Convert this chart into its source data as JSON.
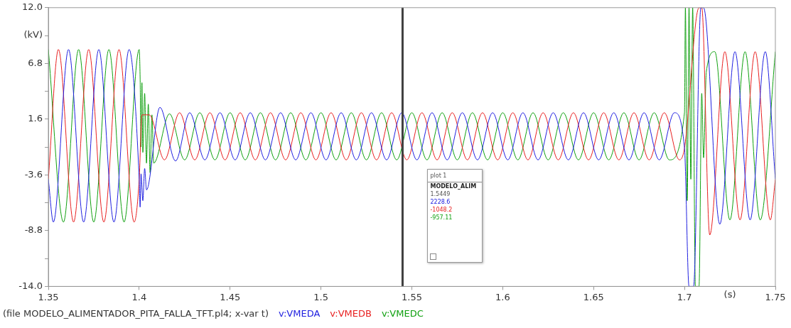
{
  "chart_data": {
    "type": "line",
    "ylabel": "(kV)",
    "xlabel": "(s)",
    "xlim": [
      1.35,
      1.75
    ],
    "xticks": [
      1.35,
      1.4,
      1.45,
      1.5,
      1.55,
      1.6,
      1.65,
      1.7,
      1.75
    ],
    "ylim": [
      -14,
      12
    ],
    "yticks": [
      {
        "value": 12,
        "label": "12.0"
      },
      {
        "value": 9.4,
        "label": null
      },
      6.8,
      {
        "value": 4.2,
        "label": null
      },
      1.6,
      {
        "value": -1,
        "label": null
      },
      -3.6,
      {
        "value": -6.2,
        "label": null
      },
      -8.8,
      {
        "value": -11.4,
        "label": null
      },
      {
        "value": -14,
        "label": "-14.0"
      }
    ],
    "marker": "none",
    "line_style": "solid",
    "legend": "bottom",
    "ref_lines": [
      {
        "axis": "x",
        "value": 1.5449,
        "color": "#404040"
      }
    ],
    "annotations": [
      "(file MODELO_ALIMENTADOR_PITA_FALLA_TFT.pl4; x-var t)",
      "plot 1",
      "MODELO_ALIM",
      "1.5449",
      "2228.6",
      "-1048.2",
      "-957.11"
    ],
    "series": [
      {
        "name": "v:VMEDA",
        "color": "#2020e0",
        "x": [
          1.35,
          1.35278,
          1.36111,
          1.36944,
          1.37778,
          1.38611,
          1.39444,
          1.4,
          1.4005,
          1.401,
          1.402,
          1.403,
          1.404,
          1.4114,
          1.42,
          1.42778,
          1.43611,
          1.44444,
          1.45278,
          1.46111,
          1.46944,
          1.47778,
          1.48611,
          1.49444,
          1.50278,
          1.51111,
          1.51944,
          1.52778,
          1.53611,
          1.54444,
          1.55278,
          1.56111,
          1.56944,
          1.57778,
          1.58611,
          1.59444,
          1.60278,
          1.61111,
          1.61944,
          1.62778,
          1.63611,
          1.64444,
          1.65278,
          1.66111,
          1.66944,
          1.67778,
          1.68611,
          1.69444,
          1.7,
          1.7025,
          1.705,
          1.709,
          1.7105,
          1.71944,
          1.72778,
          1.73611,
          1.74444,
          1.75
        ],
        "values": [
          -4.0,
          -8.0,
          8.1,
          -8.0,
          8.1,
          -8.0,
          8.1,
          -4.0,
          -6.6,
          -3.5,
          -6.0,
          -3.0,
          -5.0,
          2.7,
          -2.3,
          2.2,
          -2.2,
          2.2,
          -2.2,
          2.2,
          -2.2,
          2.2,
          -2.2,
          2.2,
          -2.2,
          2.2,
          -2.2,
          2.2,
          -2.2,
          2.2,
          -2.2,
          2.2,
          -2.2,
          2.2,
          -2.2,
          2.2,
          -2.2,
          2.2,
          -2.2,
          2.2,
          -2.2,
          2.2,
          -2.2,
          2.2,
          -2.2,
          2.2,
          -2.2,
          2.2,
          -1.1,
          -14,
          -14,
          12,
          12,
          -8.2,
          7.9,
          -7.8,
          7.9,
          -4.0
        ]
      },
      {
        "name": "v:VMEDB",
        "color": "#e82020",
        "x": [
          1.35,
          1.35556,
          1.36389,
          1.37222,
          1.38056,
          1.38889,
          1.39722,
          1.4,
          1.4015,
          1.40556,
          1.41389,
          1.42222,
          1.43056,
          1.43889,
          1.44722,
          1.45556,
          1.46389,
          1.47222,
          1.48056,
          1.48889,
          1.49722,
          1.50556,
          1.51389,
          1.52222,
          1.53056,
          1.53889,
          1.54722,
          1.55556,
          1.56389,
          1.57222,
          1.58056,
          1.58889,
          1.59722,
          1.60556,
          1.61389,
          1.62222,
          1.63056,
          1.63889,
          1.64722,
          1.65556,
          1.66389,
          1.67222,
          1.68056,
          1.68889,
          1.69722,
          1.7,
          1.708,
          1.7095,
          1.71389,
          1.72222,
          1.73056,
          1.73889,
          1.74722,
          1.75
        ],
        "values": [
          -4.0,
          8.1,
          -8.0,
          8.1,
          -8.0,
          8.1,
          -8.0,
          -4.0,
          2.0,
          2.0,
          -2.2,
          2.2,
          -2.2,
          2.2,
          -2.2,
          2.2,
          -2.2,
          2.2,
          -2.2,
          2.2,
          -2.2,
          2.2,
          -2.2,
          2.2,
          -2.2,
          2.2,
          -2.2,
          2.2,
          -2.2,
          2.2,
          -2.2,
          2.2,
          -2.2,
          2.2,
          -2.2,
          2.2,
          -2.2,
          2.2,
          -2.2,
          2.2,
          -2.2,
          2.2,
          -2.2,
          2.2,
          -2.2,
          -1.1,
          12,
          12,
          -9.2,
          7.9,
          -7.8,
          7.9,
          -7.8,
          -4.0
        ]
      },
      {
        "name": "v:VMEDC",
        "color": "#10a010",
        "x": [
          1.35,
          1.35833,
          1.36667,
          1.375,
          1.38333,
          1.39167,
          1.4,
          1.4005,
          1.401,
          1.4015,
          1.402,
          1.403,
          1.404,
          1.405,
          1.406,
          1.407,
          1.408,
          1.41667,
          1.425,
          1.43333,
          1.44167,
          1.45,
          1.45833,
          1.46667,
          1.475,
          1.48333,
          1.49167,
          1.5,
          1.50833,
          1.51667,
          1.525,
          1.53333,
          1.54167,
          1.55,
          1.55833,
          1.56667,
          1.575,
          1.58333,
          1.59167,
          1.6,
          1.60833,
          1.61667,
          1.625,
          1.63333,
          1.64167,
          1.65,
          1.65833,
          1.66667,
          1.675,
          1.68333,
          1.69167,
          1.7,
          1.7005,
          1.7015,
          1.7025,
          1.7035,
          1.7045,
          1.706,
          1.708,
          1.7095,
          1.7105,
          1.712,
          1.71667,
          1.725,
          1.73333,
          1.74167,
          1.75
        ],
        "values": [
          8.1,
          -8.0,
          8.1,
          -8.0,
          8.1,
          -8.0,
          8.1,
          5.5,
          -1.0,
          5.0,
          -1.5,
          4.0,
          -2.5,
          3.0,
          -3.4,
          2.0,
          -2.5,
          2.1,
          -2.2,
          2.2,
          -2.2,
          2.2,
          -2.2,
          2.2,
          -2.2,
          2.2,
          -2.2,
          2.2,
          -2.2,
          2.2,
          -2.2,
          2.2,
          -2.2,
          2.2,
          -2.2,
          2.2,
          -2.2,
          2.2,
          -2.2,
          2.2,
          -2.2,
          2.2,
          -2.2,
          2.2,
          -2.2,
          2.2,
          -2.2,
          2.2,
          -2.2,
          2.2,
          -2.2,
          2.2,
          12,
          -6,
          12,
          -4,
          12,
          -14,
          -14,
          4,
          -2,
          6,
          7.9,
          -7.8,
          7.9,
          -7.8,
          7.9
        ]
      }
    ]
  }
}
